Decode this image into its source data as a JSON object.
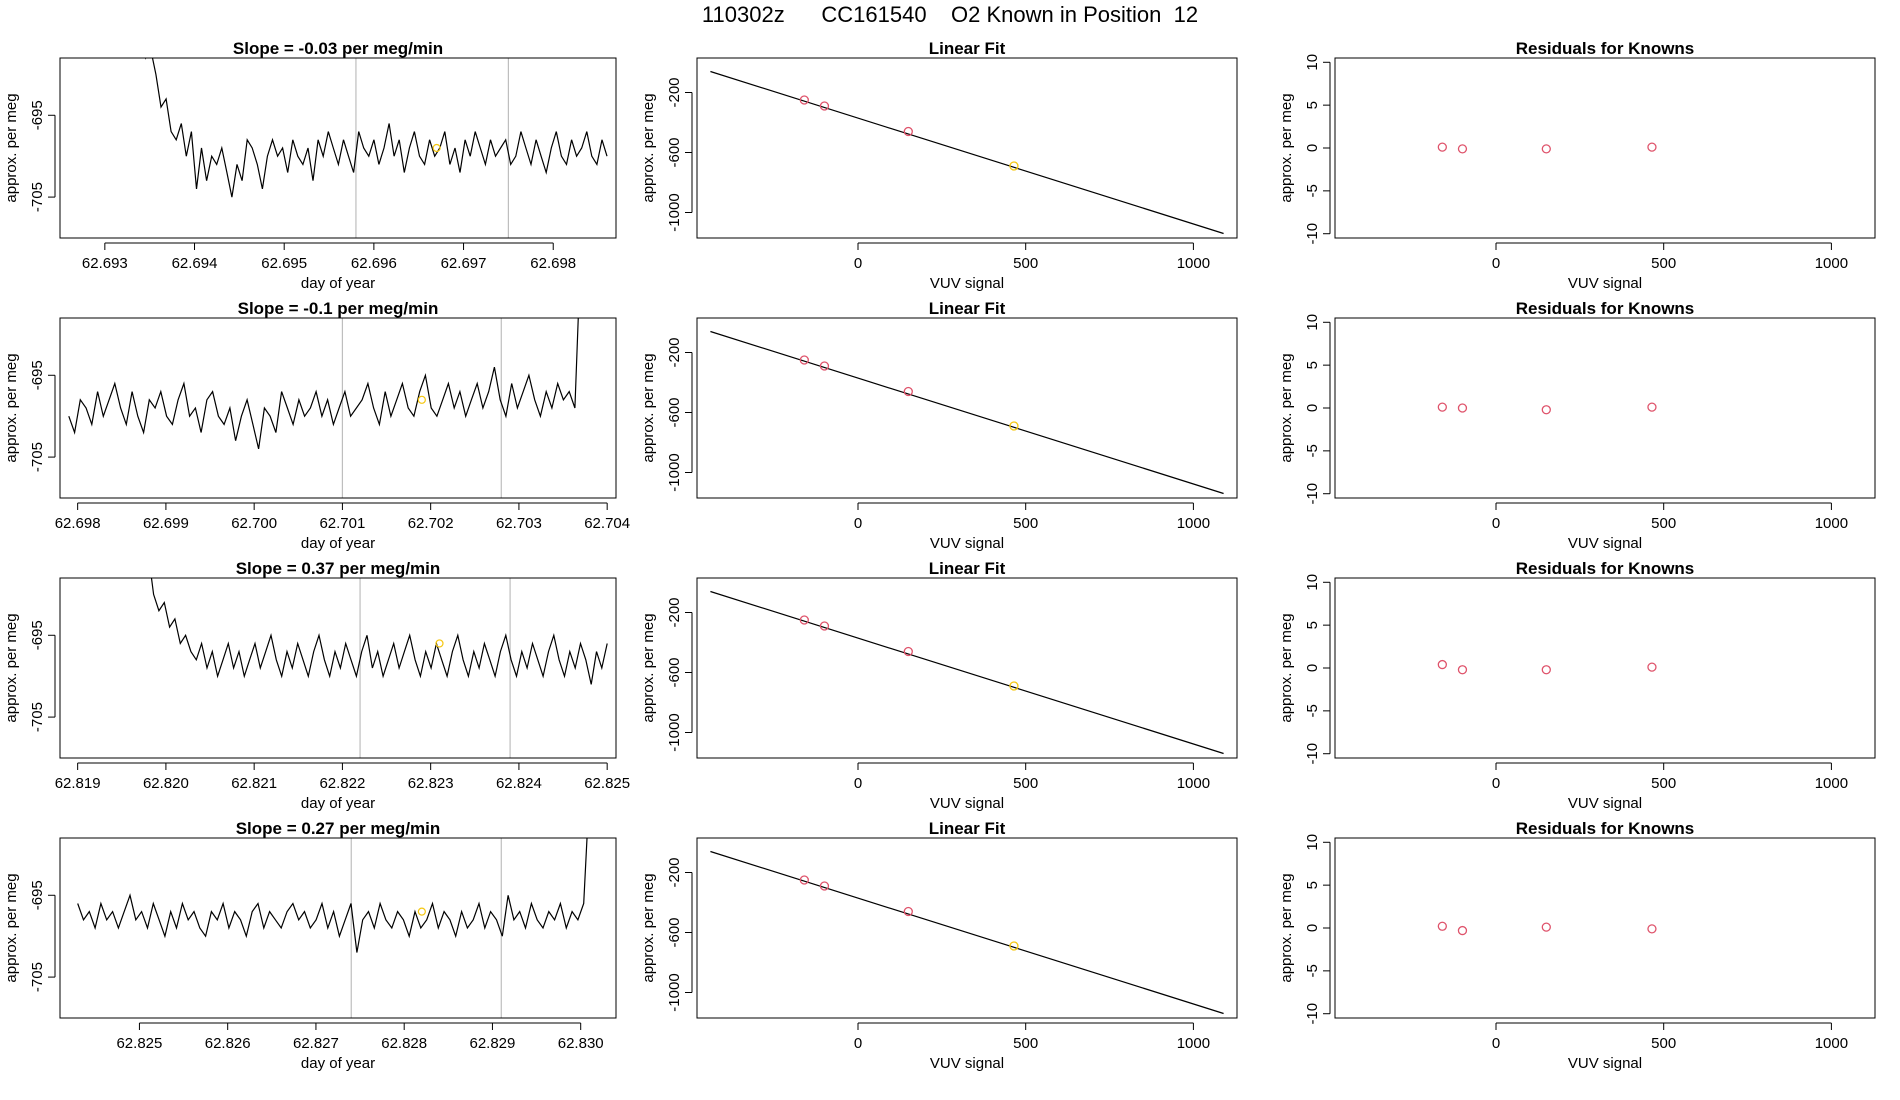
{
  "title": "110302z      CC161540    O2 Known in Position  12",
  "colors": {
    "line": "#000000",
    "frame": "#000000",
    "vline": "#bebebe",
    "ref_point": "#DF536B",
    "sample_point": "#F5C710"
  },
  "chart_data": [
    {
      "type": "line",
      "row": 1,
      "title": "Slope =  -0.03  per meg/min",
      "xlabel": "day of year",
      "ylabel": "approx. per meg",
      "xlim": [
        62.6925,
        62.6987
      ],
      "ylim": [
        -710,
        -688
      ],
      "xticks": [
        "62.693",
        "62.694",
        "62.695",
        "62.696",
        "62.697",
        "62.698"
      ],
      "xtick_values": [
        62.693,
        62.694,
        62.695,
        62.696,
        62.697,
        62.698
      ],
      "yticks": [
        "-695",
        "-705"
      ],
      "ytick_values": [
        -695,
        -705
      ],
      "vlines": [
        62.6958,
        62.6975
      ],
      "x_start": 62.6934,
      "x_end": 62.6986,
      "y": [
        -684,
        -688,
        -687,
        -690,
        -694,
        -693,
        -697,
        -698,
        -696,
        -700,
        -697,
        -704,
        -699,
        -703,
        -700,
        -701,
        -699,
        -702,
        -705,
        -701,
        -703,
        -698,
        -699,
        -701,
        -704,
        -700,
        -698,
        -700,
        -699,
        -702,
        -698,
        -700,
        -701,
        -699,
        -703,
        -698,
        -700,
        -697,
        -699,
        -701,
        -698,
        -700,
        -702,
        -697,
        -699,
        -700,
        -698,
        -701,
        -699,
        -696,
        -700,
        -698,
        -702,
        -699,
        -697,
        -700,
        -701,
        -698,
        -700,
        -699,
        -697,
        -701,
        -699,
        -702,
        -698,
        -700,
        -697,
        -699,
        -701,
        -698,
        -700,
        -699,
        -698,
        -701,
        -700,
        -697,
        -699,
        -701,
        -698,
        -700,
        -702,
        -699,
        -697,
        -700,
        -701,
        -698,
        -700,
        -699,
        -697,
        -700,
        -701,
        -698,
        -700
      ],
      "marker": {
        "x": 62.6967,
        "y": -699
      }
    },
    {
      "type": "line",
      "row": 2,
      "title": "Slope =  -0.1  per meg/min",
      "xlabel": "day of year",
      "ylabel": "approx. per meg",
      "xlim": [
        62.6978,
        62.7041
      ],
      "ylim": [
        -710,
        -688
      ],
      "xticks": [
        "62.698",
        "62.699",
        "62.700",
        "62.701",
        "62.702",
        "62.703",
        "62.704"
      ],
      "xtick_values": [
        62.698,
        62.699,
        62.7,
        62.701,
        62.702,
        62.703,
        62.704
      ],
      "yticks": [
        "-695",
        "-705"
      ],
      "ytick_values": [
        -695,
        -705
      ],
      "vlines": [
        62.701,
        62.7028
      ],
      "x_start": 62.6979,
      "x_end": 62.7037,
      "y": [
        -700,
        -702,
        -698,
        -699,
        -701,
        -697,
        -700,
        -698,
        -696,
        -699,
        -701,
        -697,
        -700,
        -702,
        -698,
        -699,
        -697,
        -700,
        -701,
        -698,
        -696,
        -700,
        -699,
        -702,
        -698,
        -697,
        -700,
        -701,
        -699,
        -703,
        -700,
        -698,
        -701,
        -704,
        -699,
        -700,
        -702,
        -697,
        -699,
        -701,
        -698,
        -700,
        -699,
        -697,
        -700,
        -698,
        -701,
        -699,
        -697,
        -700,
        -699,
        -698,
        -696,
        -699,
        -701,
        -697,
        -700,
        -698,
        -696,
        -699,
        -700,
        -697,
        -695,
        -699,
        -700,
        -698,
        -696,
        -699,
        -697,
        -700,
        -698,
        -696,
        -699,
        -697,
        -694,
        -698,
        -700,
        -696,
        -699,
        -697,
        -695,
        -698,
        -700,
        -697,
        -699,
        -696,
        -698,
        -697,
        -699,
        -680
      ],
      "marker": {
        "x": 62.7019,
        "y": -698
      }
    },
    {
      "type": "line",
      "row": 3,
      "title": "Slope =  0.37  per meg/min",
      "xlabel": "day of year",
      "ylabel": "approx. per meg",
      "xlim": [
        62.8188,
        62.8251
      ],
      "ylim": [
        -710,
        -688
      ],
      "xticks": [
        "62.819",
        "62.820",
        "62.821",
        "62.822",
        "62.823",
        "62.824",
        "62.825"
      ],
      "xtick_values": [
        62.819,
        62.82,
        62.821,
        62.822,
        62.823,
        62.824,
        62.825
      ],
      "yticks": [
        "-695",
        "-705"
      ],
      "ytick_values": [
        -695,
        -705
      ],
      "vlines": [
        62.8222,
        62.8239
      ],
      "x_start": 62.8198,
      "x_end": 62.825,
      "y": [
        -685,
        -690,
        -692,
        -691,
        -694,
        -693,
        -696,
        -695,
        -697,
        -698,
        -696,
        -699,
        -697,
        -700,
        -698,
        -696,
        -699,
        -697,
        -700,
        -698,
        -696,
        -699,
        -697,
        -695,
        -698,
        -700,
        -697,
        -699,
        -696,
        -698,
        -700,
        -697,
        -695,
        -698,
        -700,
        -697,
        -699,
        -696,
        -698,
        -700,
        -697,
        -695,
        -699,
        -697,
        -700,
        -698,
        -696,
        -699,
        -697,
        -695,
        -698,
        -700,
        -697,
        -699,
        -696,
        -698,
        -700,
        -697,
        -695,
        -698,
        -700,
        -697,
        -699,
        -696,
        -698,
        -700,
        -697,
        -695,
        -698,
        -700,
        -697,
        -699,
        -696,
        -698,
        -700,
        -697,
        -695,
        -698,
        -700,
        -697,
        -699,
        -696,
        -698,
        -701,
        -697,
        -699,
        -696
      ],
      "marker": {
        "x": 62.8231,
        "y": -696
      }
    },
    {
      "type": "line",
      "row": 4,
      "title": "Slope =  0.27  per meg/min",
      "xlabel": "day of year",
      "ylabel": "approx. per meg",
      "xlim": [
        62.8241,
        62.8304
      ],
      "ylim": [
        -710,
        -688
      ],
      "xticks": [
        "62.825",
        "62.826",
        "62.827",
        "62.828",
        "62.829",
        "62.830"
      ],
      "xtick_values": [
        62.825,
        62.826,
        62.827,
        62.828,
        62.829,
        62.83
      ],
      "yticks": [
        "-695",
        "-705"
      ],
      "ytick_values": [
        -695,
        -705
      ],
      "vlines": [
        62.8274,
        62.8291
      ],
      "x_start": 62.8243,
      "x_end": 62.8301,
      "y": [
        -696,
        -698,
        -697,
        -699,
        -696,
        -698,
        -697,
        -699,
        -697,
        -695,
        -698,
        -697,
        -699,
        -696,
        -698,
        -700,
        -697,
        -699,
        -696,
        -698,
        -697,
        -699,
        -700,
        -697,
        -698,
        -696,
        -699,
        -697,
        -698,
        -700,
        -697,
        -696,
        -699,
        -697,
        -698,
        -699,
        -697,
        -696,
        -698,
        -697,
        -699,
        -698,
        -696,
        -699,
        -697,
        -700,
        -698,
        -696,
        -702,
        -698,
        -697,
        -699,
        -696,
        -698,
        -699,
        -697,
        -698,
        -700,
        -697,
        -699,
        -698,
        -696,
        -699,
        -697,
        -698,
        -700,
        -697,
        -699,
        -698,
        -696,
        -699,
        -697,
        -698,
        -700,
        -695,
        -698,
        -697,
        -699,
        -696,
        -698,
        -699,
        -697,
        -698,
        -696,
        -699,
        -697,
        -698,
        -696,
        -682
      ],
      "marker": {
        "x": 62.8282,
        "y": -697
      }
    },
    {
      "type": "scatter",
      "row": 1,
      "title": "Linear Fit",
      "xlabel": "VUV signal",
      "ylabel": "approx. per meg",
      "xlim": [
        -480,
        1130
      ],
      "ylim": [
        -1170,
        30
      ],
      "xticks": [
        "0",
        "500",
        "1000"
      ],
      "xtick_values": [
        0,
        500,
        1000
      ],
      "yticks": [
        "-200",
        "-600",
        "-1000"
      ],
      "ytick_values": [
        -200,
        -600,
        -1000
      ],
      "fit_line": {
        "x": [
          -440,
          1090
        ],
        "y": [
          -60,
          -1140
        ]
      },
      "points": [
        {
          "x": -160,
          "y": -250
        },
        {
          "x": -100,
          "y": -290
        },
        {
          "x": 150,
          "y": -460
        },
        {
          "x": 465,
          "y": -690,
          "sample": true
        }
      ]
    },
    {
      "type": "scatter",
      "row": 2,
      "title": "Linear Fit",
      "xlabel": "VUV signal",
      "ylabel": "approx. per meg",
      "xlim": [
        -480,
        1130
      ],
      "ylim": [
        -1170,
        30
      ],
      "xticks": [
        "0",
        "500",
        "1000"
      ],
      "xtick_values": [
        0,
        500,
        1000
      ],
      "yticks": [
        "-200",
        "-600",
        "-1000"
      ],
      "ytick_values": [
        -200,
        -600,
        -1000
      ],
      "fit_line": {
        "x": [
          -440,
          1090
        ],
        "y": [
          -60,
          -1140
        ]
      },
      "points": [
        {
          "x": -160,
          "y": -250
        },
        {
          "x": -100,
          "y": -290
        },
        {
          "x": 150,
          "y": -460
        },
        {
          "x": 465,
          "y": -690,
          "sample": true
        }
      ]
    },
    {
      "type": "scatter",
      "row": 3,
      "title": "Linear Fit",
      "xlabel": "VUV signal",
      "ylabel": "approx. per meg",
      "xlim": [
        -480,
        1130
      ],
      "ylim": [
        -1170,
        30
      ],
      "xticks": [
        "0",
        "500",
        "1000"
      ],
      "xtick_values": [
        0,
        500,
        1000
      ],
      "yticks": [
        "-200",
        "-600",
        "-1000"
      ],
      "ytick_values": [
        -200,
        -600,
        -1000
      ],
      "fit_line": {
        "x": [
          -440,
          1090
        ],
        "y": [
          -60,
          -1140
        ]
      },
      "points": [
        {
          "x": -160,
          "y": -250
        },
        {
          "x": -100,
          "y": -290
        },
        {
          "x": 150,
          "y": -460
        },
        {
          "x": 465,
          "y": -690,
          "sample": true
        }
      ]
    },
    {
      "type": "scatter",
      "row": 4,
      "title": "Linear Fit",
      "xlabel": "VUV signal",
      "ylabel": "approx. per meg",
      "xlim": [
        -480,
        1130
      ],
      "ylim": [
        -1170,
        30
      ],
      "xticks": [
        "0",
        "500",
        "1000"
      ],
      "xtick_values": [
        0,
        500,
        1000
      ],
      "yticks": [
        "-200",
        "-600",
        "-1000"
      ],
      "ytick_values": [
        -200,
        -600,
        -1000
      ],
      "fit_line": {
        "x": [
          -440,
          1090
        ],
        "y": [
          -60,
          -1140
        ]
      },
      "points": [
        {
          "x": -160,
          "y": -250
        },
        {
          "x": -100,
          "y": -290
        },
        {
          "x": 150,
          "y": -460
        },
        {
          "x": 465,
          "y": -690,
          "sample": true
        }
      ]
    },
    {
      "type": "scatter",
      "row": 1,
      "title": "Residuals for Knowns",
      "xlabel": "VUV signal",
      "ylabel": "approx. per meg",
      "xlim": [
        -480,
        1130
      ],
      "ylim": [
        -10.5,
        10.5
      ],
      "xticks": [
        "0",
        "500",
        "1000"
      ],
      "xtick_values": [
        0,
        500,
        1000
      ],
      "yticks": [
        "-10",
        "-5",
        "0",
        "5",
        "10"
      ],
      "ytick_values": [
        -10,
        -5,
        0,
        5,
        10
      ],
      "points": [
        {
          "x": -160,
          "y": 0.1
        },
        {
          "x": -100,
          "y": -0.1
        },
        {
          "x": 150,
          "y": -0.1
        },
        {
          "x": 465,
          "y": 0.1
        }
      ]
    },
    {
      "type": "scatter",
      "row": 2,
      "title": "Residuals for Knowns",
      "xlabel": "VUV signal",
      "ylabel": "approx. per meg",
      "xlim": [
        -480,
        1130
      ],
      "ylim": [
        -10.5,
        10.5
      ],
      "xticks": [
        "0",
        "500",
        "1000"
      ],
      "xtick_values": [
        0,
        500,
        1000
      ],
      "yticks": [
        "-10",
        "-5",
        "0",
        "5",
        "10"
      ],
      "ytick_values": [
        -10,
        -5,
        0,
        5,
        10
      ],
      "points": [
        {
          "x": -160,
          "y": 0.1
        },
        {
          "x": -100,
          "y": 0.0
        },
        {
          "x": 150,
          "y": -0.2
        },
        {
          "x": 465,
          "y": 0.1
        }
      ]
    },
    {
      "type": "scatter",
      "row": 3,
      "title": "Residuals for Knowns",
      "xlabel": "VUV signal",
      "ylabel": "approx. per meg",
      "xlim": [
        -480,
        1130
      ],
      "ylim": [
        -10.5,
        10.5
      ],
      "xticks": [
        "0",
        "500",
        "1000"
      ],
      "xtick_values": [
        0,
        500,
        1000
      ],
      "yticks": [
        "-10",
        "-5",
        "0",
        "5",
        "10"
      ],
      "ytick_values": [
        -10,
        -5,
        0,
        5,
        10
      ],
      "points": [
        {
          "x": -160,
          "y": 0.4
        },
        {
          "x": -100,
          "y": -0.2
        },
        {
          "x": 150,
          "y": -0.2
        },
        {
          "x": 465,
          "y": 0.1
        }
      ]
    },
    {
      "type": "scatter",
      "row": 4,
      "title": "Residuals for Knowns",
      "xlabel": "VUV signal",
      "ylabel": "approx. per meg",
      "xlim": [
        -480,
        1130
      ],
      "ylim": [
        -10.5,
        10.5
      ],
      "xticks": [
        "0",
        "500",
        "1000"
      ],
      "xtick_values": [
        0,
        500,
        1000
      ],
      "yticks": [
        "-10",
        "-5",
        "0",
        "5",
        "10"
      ],
      "ytick_values": [
        -10,
        -5,
        0,
        5,
        10
      ],
      "points": [
        {
          "x": -160,
          "y": 0.2
        },
        {
          "x": -100,
          "y": -0.3
        },
        {
          "x": 150,
          "y": 0.1
        },
        {
          "x": 465,
          "y": -0.1
        }
      ]
    }
  ]
}
